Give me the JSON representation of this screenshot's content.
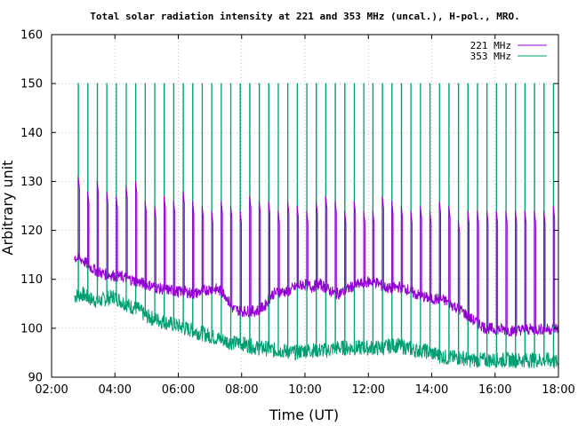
{
  "chart_data": {
    "type": "line",
    "title": "Total solar radiation intensity at 221 and 353 MHz (uncal.), H-pol., MRO.",
    "xlabel": "Time (UT)",
    "ylabel": "Arbitrary unit",
    "xlim_hours": [
      2,
      18
    ],
    "ylim": [
      90,
      160
    ],
    "x_ticks": [
      "02:00",
      "04:00",
      "06:00",
      "08:00",
      "10:00",
      "12:00",
      "14:00",
      "16:00",
      "18:00"
    ],
    "y_ticks": [
      "90",
      "100",
      "110",
      "120",
      "130",
      "140",
      "150",
      "160"
    ],
    "grid": true,
    "legend_position": "top-right",
    "series": [
      {
        "name": "221 MHz",
        "color": "#9400d3",
        "start_hour": 2.72,
        "end_hour": 18.0,
        "step_hours": 0.25,
        "baseline": [
          114.5,
          114.0,
          112.5,
          111.5,
          111.0,
          110.8,
          110.5,
          110.0,
          109.5,
          109.0,
          108.5,
          108.0,
          107.8,
          107.5,
          107.5,
          107.0,
          107.5,
          108.0,
          108.0,
          107.0,
          104.0,
          103.5,
          103.5,
          103.5,
          104.5,
          107.0,
          107.5,
          107.5,
          108.5,
          109.0,
          108.5,
          109.0,
          108.0,
          107.0,
          107.5,
          108.5,
          109.0,
          109.5,
          109.5,
          108.5,
          108.0,
          108.5,
          108.0,
          107.0,
          106.5,
          106.0,
          106.0,
          105.5,
          104.5,
          103.5,
          102.0,
          101.0,
          100.0,
          99.8,
          99.8,
          99.5,
          99.5,
          99.8,
          99.8,
          99.8,
          99.8,
          100.0
        ],
        "spikes": {
          "interval_hours": 0.3,
          "peak_values": [
            131,
            128,
            130,
            128,
            127,
            129,
            130,
            126,
            125,
            127,
            126,
            128,
            126,
            125,
            124,
            126,
            125,
            124,
            127,
            126,
            126,
            124,
            126,
            125,
            124,
            126,
            127,
            126,
            124,
            126,
            124,
            124,
            127,
            126,
            125,
            124,
            125,
            124,
            126,
            125,
            122,
            124,
            124,
            124,
            124,
            124,
            124,
            124,
            124,
            124,
            125,
            125
          ]
        }
      },
      {
        "name": "353 MHz",
        "color": "#009e73",
        "start_hour": 2.72,
        "end_hour": 18.0,
        "step_hours": 0.25,
        "baseline": [
          106.5,
          107.0,
          106.0,
          105.5,
          106.0,
          106.5,
          105.5,
          104.5,
          104.0,
          102.5,
          102.0,
          101.5,
          101.0,
          100.5,
          100.0,
          99.5,
          99.0,
          98.5,
          98.0,
          97.5,
          97.0,
          97.0,
          96.5,
          96.0,
          96.0,
          95.5,
          95.5,
          95.2,
          95.0,
          95.5,
          95.5,
          95.5,
          95.5,
          96.0,
          96.0,
          96.0,
          96.0,
          96.0,
          96.0,
          96.0,
          96.5,
          96.5,
          96.0,
          95.5,
          95.5,
          95.0,
          94.5,
          94.0,
          94.0,
          94.0,
          93.5,
          93.5,
          93.5,
          93.5,
          93.5,
          93.5,
          93.5,
          93.5,
          93.5,
          93.5,
          93.5,
          93.0
        ],
        "spikes": {
          "interval_hours": 0.3,
          "peak_value": 150
        }
      }
    ]
  }
}
